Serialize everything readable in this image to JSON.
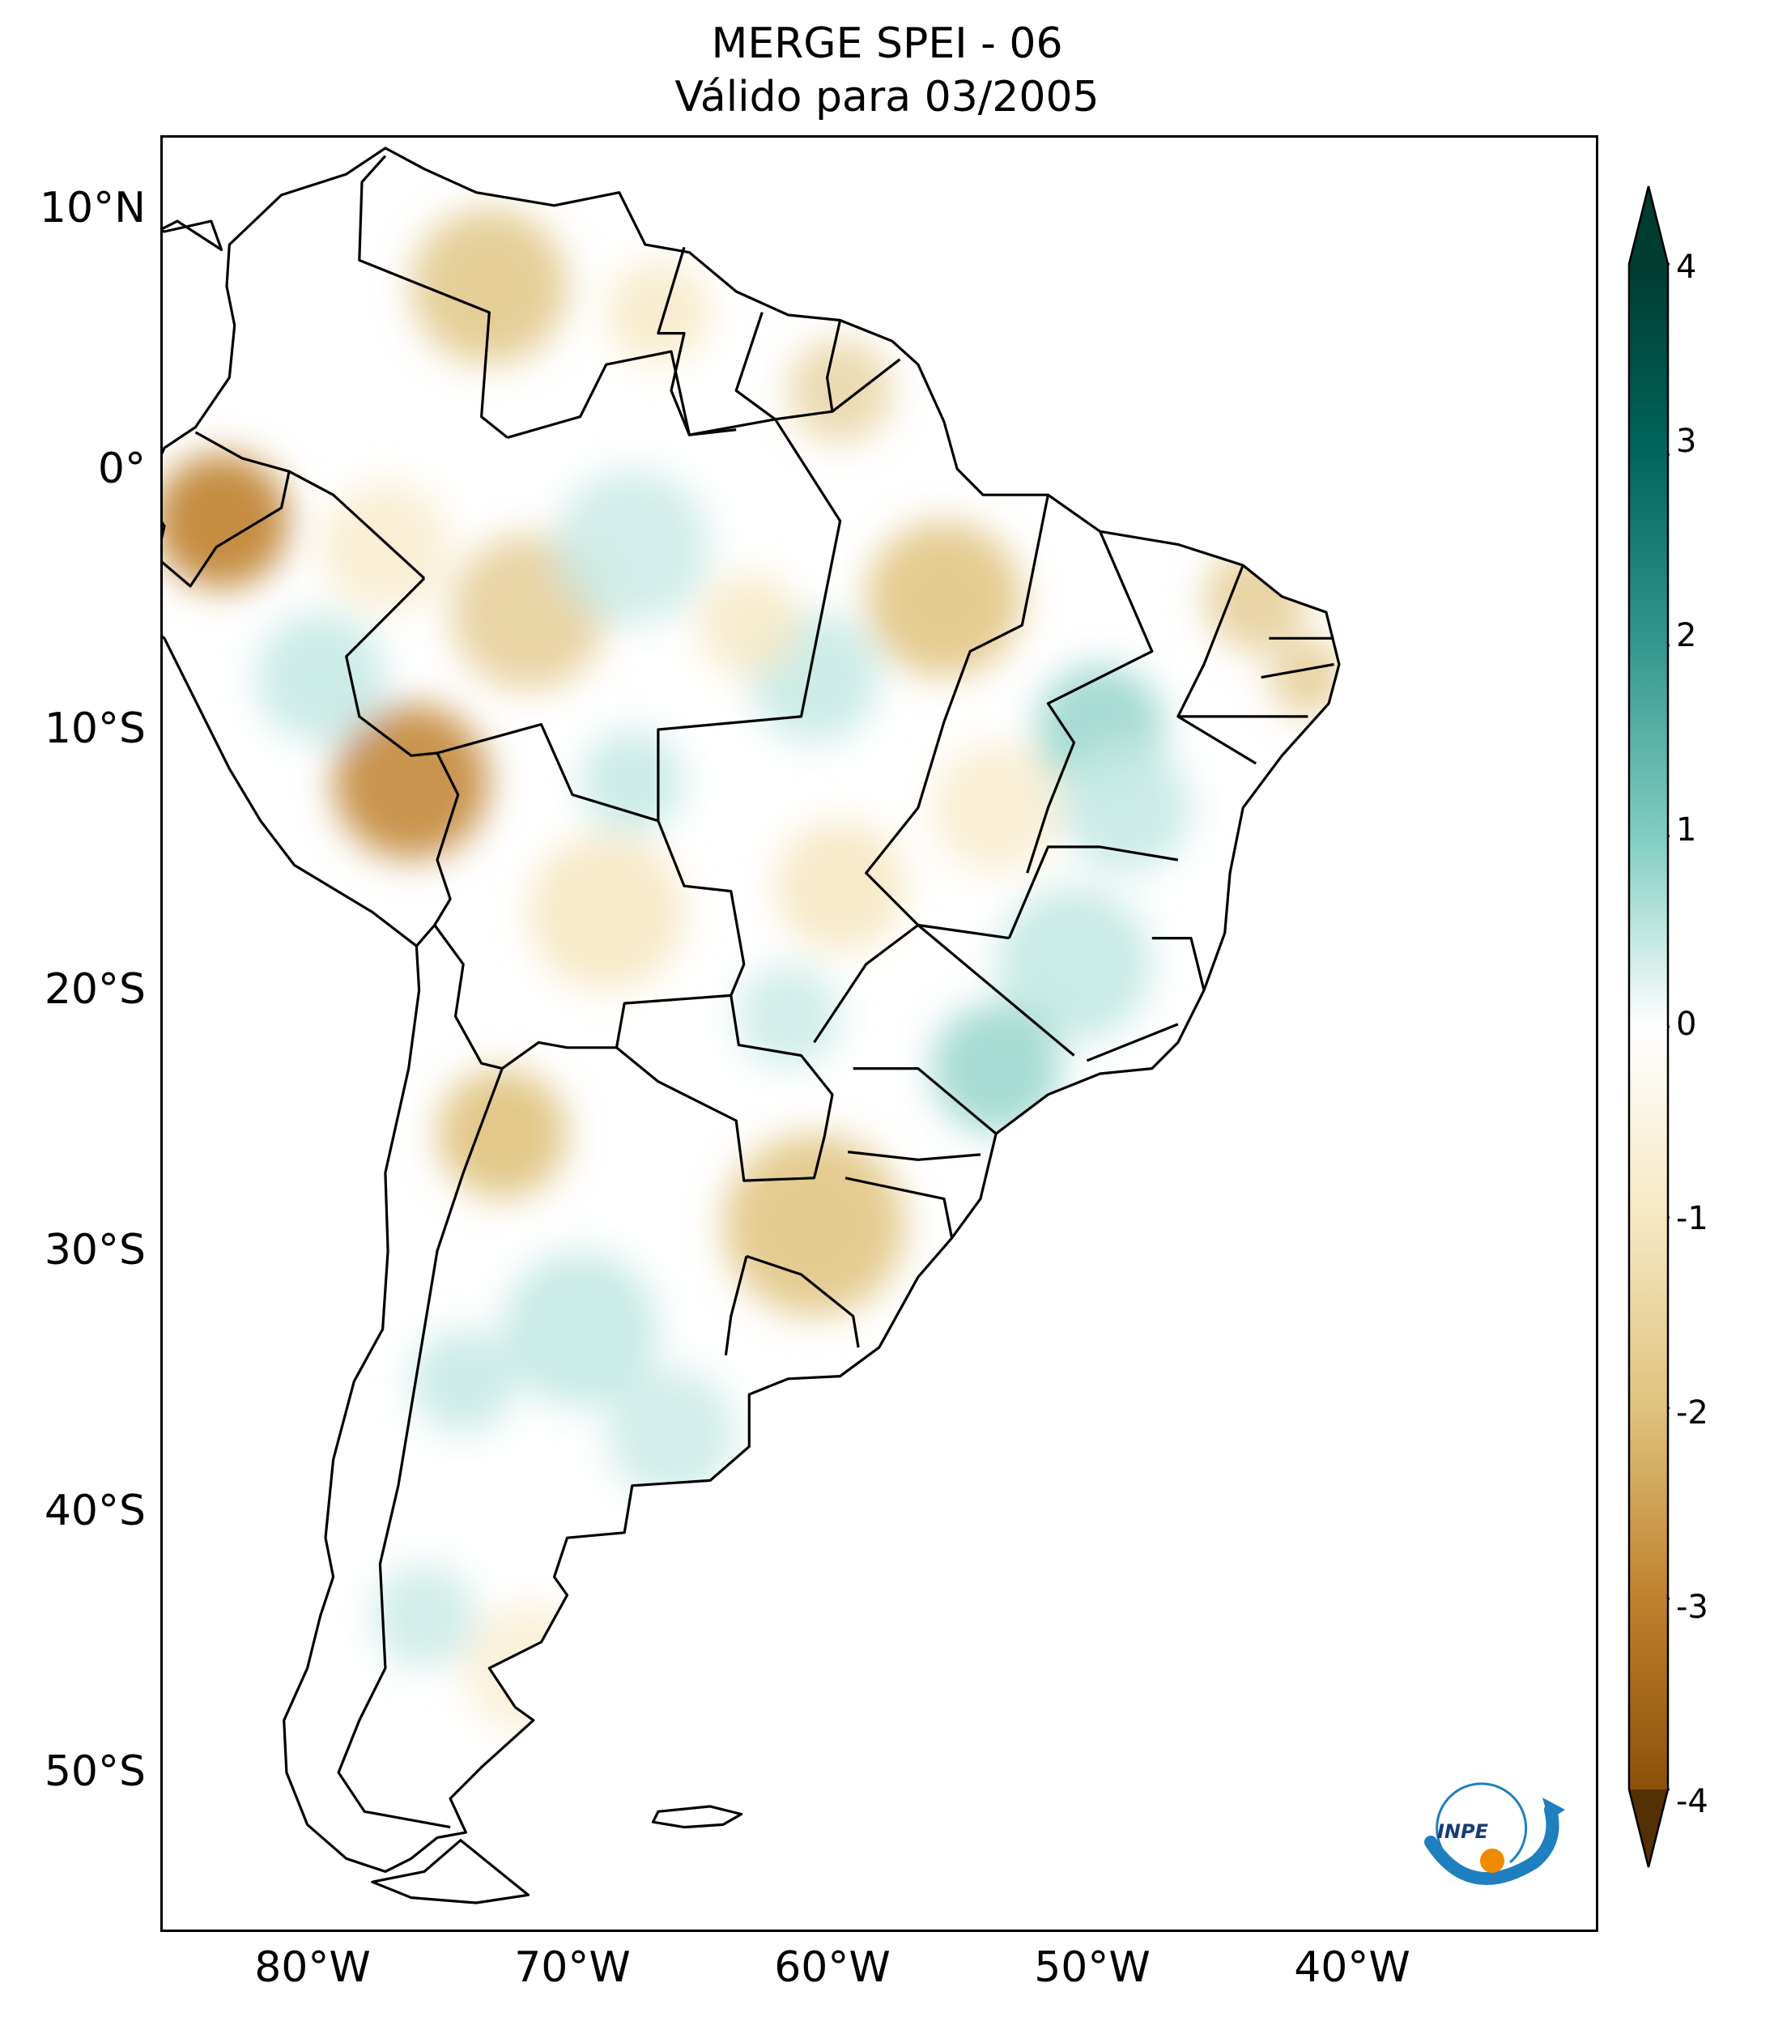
{
  "title": {
    "line1": "MERGE   SPEI - 06",
    "line2": "Válido para 03/2005"
  },
  "map": {
    "region": "South America",
    "variable": "SPEI - 06",
    "lat_ticks": [
      "10°N",
      "0°",
      "10°S",
      "20°S",
      "30°S",
      "40°S",
      "50°S"
    ],
    "lon_ticks": [
      "80°W",
      "70°W",
      "60°W",
      "50°W",
      "40°W"
    ]
  },
  "colorbar": {
    "ticks": [
      "4",
      "3",
      "2",
      "1",
      "0",
      "-1",
      "-2",
      "-3",
      "-4"
    ],
    "min": -4,
    "max": 4,
    "extend": "both",
    "colormap": "BrBG",
    "colors": {
      "neg_extreme": "#543005",
      "neg_strong": "#8c510a",
      "neg_mid": "#bf812d",
      "neg_light": "#dfc27d",
      "neg_pale": "#f6e8c3",
      "neutral": "#ffffff",
      "pos_pale": "#c7eae5",
      "pos_light": "#80cdc1",
      "pos_mid": "#35978f",
      "pos_strong": "#01665e",
      "pos_extreme": "#003c30"
    }
  },
  "logo": {
    "text": "INPE",
    "icon": "inpe-logo-icon"
  }
}
